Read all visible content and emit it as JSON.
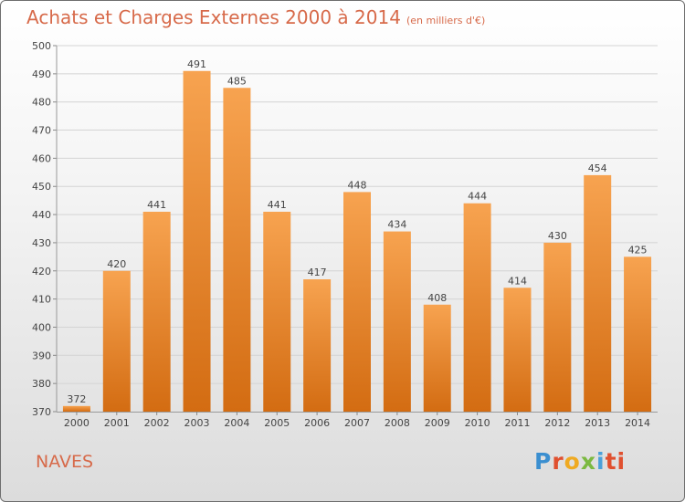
{
  "title": "Achats et Charges Externes 2000 à 2014",
  "unit": "(en milliers d'€)",
  "commune": "NAVES",
  "brand": {
    "letters": [
      "P",
      "r",
      "o",
      "x",
      "i",
      "ti"
    ]
  },
  "colors": {
    "bar_top": "#f7a350",
    "bar_bottom": "#d36c12",
    "title": "#d76a4a"
  },
  "chart_data": {
    "type": "bar",
    "categories": [
      "2000",
      "2001",
      "2002",
      "2003",
      "2004",
      "2005",
      "2006",
      "2007",
      "2008",
      "2009",
      "2010",
      "2011",
      "2012",
      "2013",
      "2014"
    ],
    "values": [
      372,
      420,
      441,
      491,
      485,
      441,
      417,
      448,
      434,
      408,
      444,
      414,
      430,
      454,
      425
    ],
    "data_labels": [
      "372",
      "420",
      "441",
      "491",
      "485",
      "441",
      "417",
      "448",
      "434",
      "408",
      "444",
      "414",
      "430",
      "454",
      "425"
    ],
    "yticks": [
      "370",
      "380",
      "390",
      "400",
      "410",
      "420",
      "430",
      "440",
      "450",
      "460",
      "470",
      "480",
      "490",
      "500"
    ],
    "ylim": [
      370,
      500
    ],
    "grid": "horizontal",
    "legend": "none"
  }
}
